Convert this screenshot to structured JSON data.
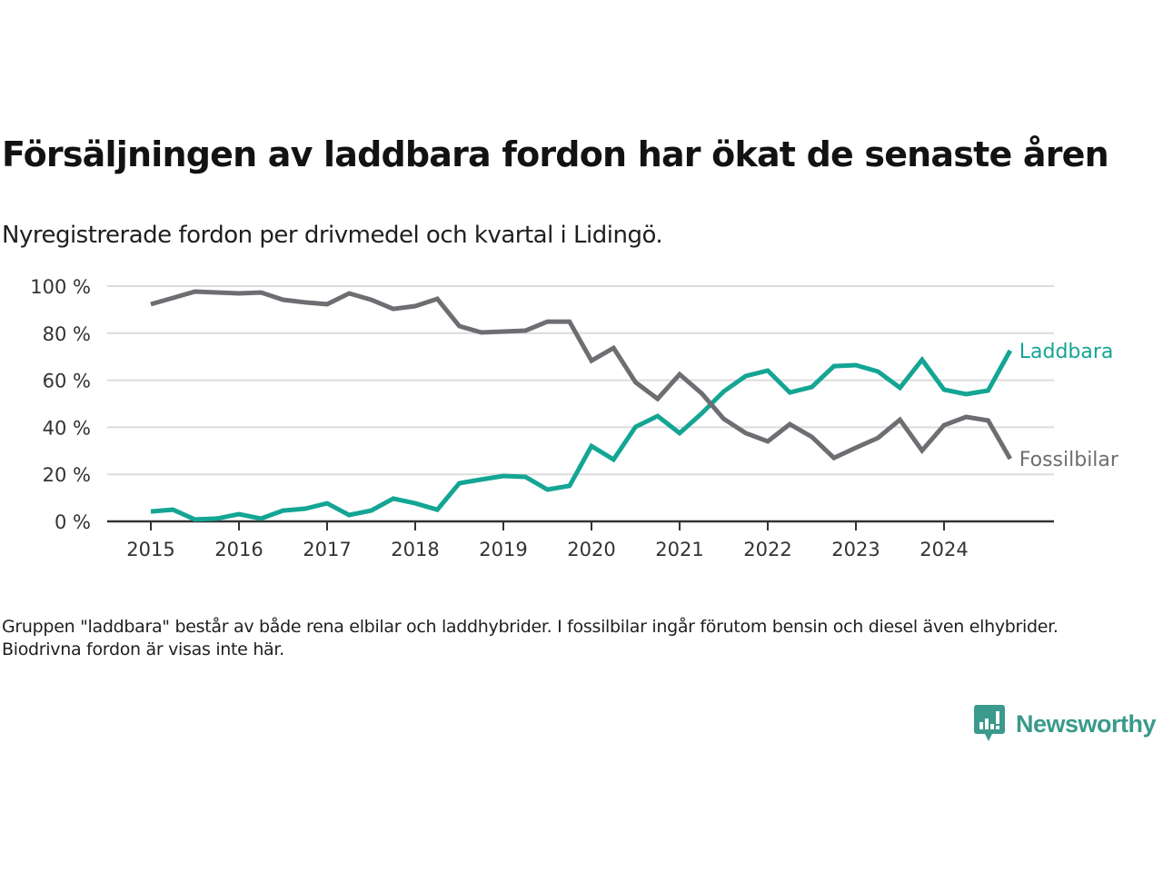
{
  "header": {
    "title": "Försäljningen av laddbara fordon har ökat de senaste åren",
    "subtitle": "Nyregistrerade fordon per drivmedel och kvartal i Lidingö."
  },
  "note": "Gruppen \"laddbara\" består av både rena elbilar och laddhybrider. I fossilbilar ingår förutom bensin och diesel även elhybrider. Biodrivna fordon är visas inte här.",
  "brand": {
    "name": "Newsworthy",
    "icon": "newsworthy-logo-icon",
    "color": "#3a9a8b"
  },
  "chart_data": {
    "type": "line",
    "title": "Försäljningen av laddbara fordon har ökat de senaste åren",
    "subtitle": "Nyregistrerade fordon per drivmedel och kvartal i Lidingö.",
    "xlabel": "",
    "ylabel": "",
    "x": [
      "2015Q1",
      "2015Q2",
      "2015Q3",
      "2015Q4",
      "2016Q1",
      "2016Q2",
      "2016Q3",
      "2016Q4",
      "2017Q1",
      "2017Q2",
      "2017Q3",
      "2017Q4",
      "2018Q1",
      "2018Q2",
      "2018Q3",
      "2018Q4",
      "2019Q1",
      "2019Q2",
      "2019Q3",
      "2019Q4",
      "2020Q1",
      "2020Q2",
      "2020Q3",
      "2020Q4",
      "2021Q1",
      "2021Q2",
      "2021Q3",
      "2021Q4",
      "2022Q1",
      "2022Q2",
      "2022Q3",
      "2022Q4",
      "2023Q1",
      "2023Q2",
      "2023Q3",
      "2023Q4",
      "2024Q1",
      "2024Q2",
      "2024Q3",
      "2024Q4"
    ],
    "xticks": [
      "2015",
      "2016",
      "2017",
      "2018",
      "2019",
      "2020",
      "2021",
      "2022",
      "2023",
      "2024"
    ],
    "yticks": [
      "0 %",
      "20 %",
      "40 %",
      "60 %",
      "80 %",
      "100 %"
    ],
    "ytick_values": [
      0,
      20,
      40,
      60,
      80,
      100
    ],
    "ylim": [
      0,
      100
    ],
    "grid": "horizontal",
    "legend": "inline-right",
    "series": [
      {
        "name": "Laddbara",
        "color": "#14a594",
        "values": [
          4.2,
          5.0,
          0.8,
          1.2,
          3.1,
          1.2,
          4.6,
          5.4,
          7.7,
          2.7,
          4.6,
          9.7,
          7.7,
          5.0,
          16.2,
          17.8,
          19.3,
          18.9,
          13.5,
          15.1,
          32.0,
          26.3,
          40.2,
          44.8,
          37.5,
          45.9,
          55.2,
          61.8,
          64.1,
          54.8,
          57.1,
          66.0,
          66.4,
          63.7,
          56.8,
          68.7,
          56.0,
          54.1,
          55.6,
          72.6
        ]
      },
      {
        "name": "Fossilbilar",
        "color": "#6e6d72",
        "values": [
          92.3,
          95.0,
          97.7,
          97.3,
          96.9,
          97.3,
          94.2,
          93.1,
          92.3,
          96.9,
          94.2,
          90.3,
          91.5,
          94.6,
          83.0,
          80.3,
          80.7,
          81.1,
          84.9,
          84.9,
          68.3,
          73.7,
          59.1,
          52.1,
          62.5,
          54.4,
          43.6,
          37.5,
          34.0,
          41.3,
          35.9,
          27.0,
          31.3,
          35.5,
          43.2,
          30.1,
          40.9,
          44.4,
          42.9,
          26.6
        ]
      }
    ]
  }
}
